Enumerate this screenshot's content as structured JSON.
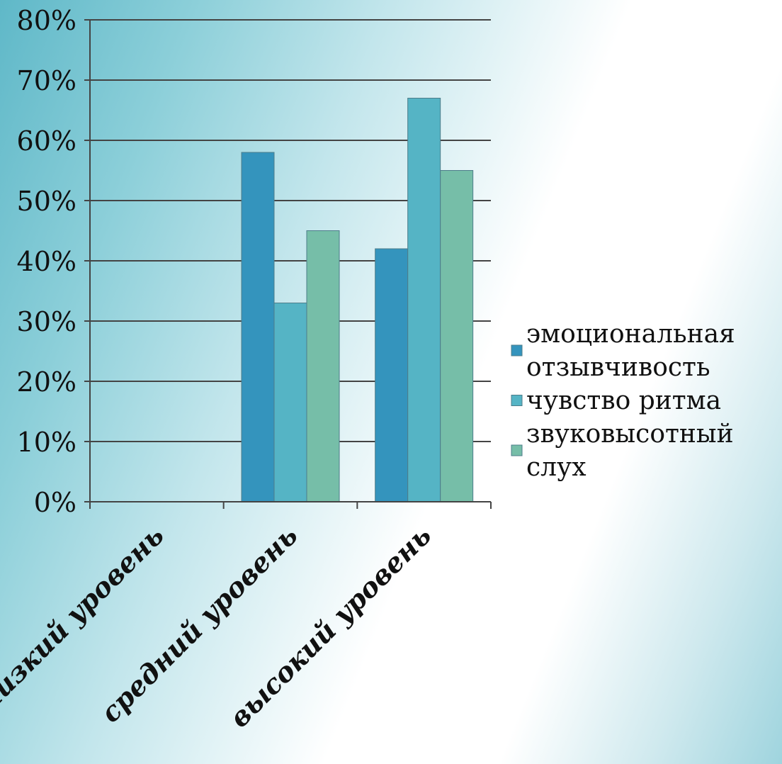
{
  "chart_data": {
    "type": "bar",
    "title": "",
    "xlabel": "",
    "ylabel": "",
    "ylim": [
      0,
      0.8
    ],
    "yticks": [
      "0%",
      "10%",
      "20%",
      "30%",
      "40%",
      "50%",
      "60%",
      "70%",
      "80%"
    ],
    "grid": true,
    "legend_position": "right",
    "categories": [
      "низкий уровень",
      "средний уровень",
      "высокий уровень"
    ],
    "series": [
      {
        "name": "эмоциональная отзывчивость",
        "name_lines": [
          "эмоциональная",
          "отзывчивость"
        ],
        "color": "#3494bd",
        "values": [
          0,
          0.58,
          0.42
        ]
      },
      {
        "name": "чувство ритма",
        "name_lines": [
          "чувство ритма"
        ],
        "color": "#55b4c5",
        "values": [
          0,
          0.33,
          0.67
        ]
      },
      {
        "name": "звуковысотный слух",
        "name_lines": [
          "звуковысотный",
          "слух"
        ],
        "color": "#76bea8",
        "values": [
          0,
          0.45,
          0.55
        ]
      }
    ]
  }
}
